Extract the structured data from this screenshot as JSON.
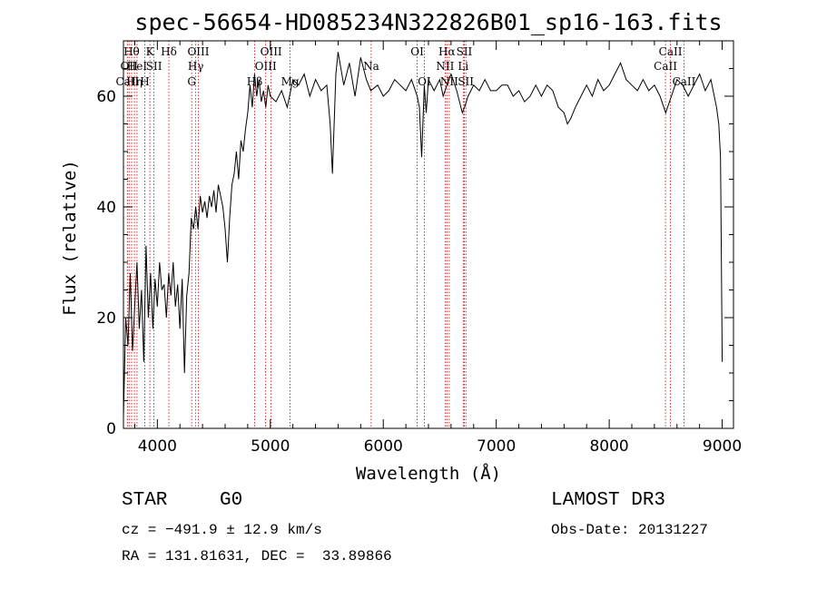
{
  "chart_data": {
    "type": "line",
    "title": "spec-56654-HD085234N322826B01_sp16-163.fits",
    "xlabel": "Wavelength (Å)",
    "ylabel": "Flux (relative)",
    "xlim": [
      3700,
      9100
    ],
    "ylim": [
      0,
      70
    ],
    "xticks": [
      4000,
      5000,
      6000,
      7000,
      8000,
      9000
    ],
    "yticks": [
      0,
      20,
      40,
      60
    ],
    "grid": false,
    "series": [
      {
        "x": [
          3700,
          3720,
          3740,
          3760,
          3780,
          3800,
          3820,
          3840,
          3860,
          3880,
          3900,
          3920,
          3940,
          3960,
          3980,
          4000,
          4020,
          4040,
          4060,
          4080,
          4100,
          4120,
          4140,
          4160,
          4180,
          4200,
          4220,
          4240,
          4260,
          4280,
          4300,
          4320,
          4340,
          4360,
          4380,
          4400,
          4420,
          4440,
          4460,
          4480,
          4500,
          4520,
          4540,
          4560,
          4580,
          4600,
          4620,
          4640,
          4660,
          4680,
          4700,
          4720,
          4740,
          4760,
          4780,
          4800,
          4820,
          4840,
          4860,
          4880,
          4900,
          4920,
          4940,
          4960,
          4980,
          5000,
          5050,
          5100,
          5150,
          5200,
          5250,
          5300,
          5350,
          5400,
          5450,
          5500,
          5530,
          5550,
          5580,
          5600,
          5650,
          5700,
          5750,
          5800,
          5850,
          5890,
          5950,
          6000,
          6050,
          6100,
          6150,
          6200,
          6250,
          6300,
          6320,
          6340,
          6363,
          6380,
          6400,
          6450,
          6500,
          6530,
          6563,
          6600,
          6650,
          6700,
          6720,
          6750,
          6800,
          6850,
          6900,
          6950,
          7000,
          7050,
          7100,
          7150,
          7200,
          7250,
          7300,
          7350,
          7400,
          7450,
          7500,
          7550,
          7600,
          7630,
          7660,
          7700,
          7750,
          7800,
          7850,
          7900,
          7950,
          8000,
          8050,
          8100,
          8150,
          8200,
          8250,
          8300,
          8350,
          8400,
          8450,
          8500,
          8550,
          8600,
          8650,
          8700,
          8750,
          8800,
          8850,
          8900,
          8950,
          8970,
          8985,
          9000
        ],
        "y": [
          2,
          20,
          15,
          28,
          14,
          22,
          30,
          18,
          25,
          12,
          33,
          20,
          28,
          18,
          27,
          22,
          30,
          25,
          26,
          20,
          28,
          24,
          30,
          22,
          26,
          18,
          27,
          10,
          24,
          28,
          38,
          36,
          40,
          36,
          42,
          39,
          41,
          38,
          42,
          40,
          43,
          39,
          44,
          42,
          40,
          36,
          30,
          38,
          44,
          46,
          50,
          45,
          52,
          50,
          54,
          57,
          62,
          58,
          64,
          60,
          63,
          59,
          61,
          58,
          62,
          60,
          59,
          61,
          58,
          63,
          62,
          64,
          60,
          63,
          61,
          62,
          55,
          46,
          64,
          68,
          62,
          66,
          60,
          67,
          63,
          61,
          62,
          60,
          61,
          63,
          62,
          61,
          63,
          60,
          58,
          49,
          62,
          57,
          63,
          61,
          63,
          60,
          62,
          64,
          61,
          57,
          58,
          60,
          62,
          61,
          63,
          61,
          61,
          62,
          62,
          60,
          61,
          59,
          60,
          62,
          60,
          62,
          61,
          58,
          57,
          55,
          56,
          58,
          60,
          62,
          60,
          63,
          61,
          62,
          64,
          66,
          63,
          62,
          61,
          63,
          61,
          62,
          60,
          57,
          60,
          63,
          62,
          60,
          62,
          64,
          61,
          63,
          58,
          55,
          49,
          12
        ]
      }
    ],
    "lines": [
      {
        "x": 3735,
        "label": "CaII",
        "row": 2
      },
      {
        "x": 3750,
        "label": "OII",
        "row": 1
      },
      {
        "x": 3772,
        "label": "Hθ",
        "row": 0
      },
      {
        "x": 3797,
        "label": "Hη",
        "row": 2
      },
      {
        "x": 3820,
        "label": "HeI",
        "row": 1
      },
      {
        "x": 3889,
        "label": "H",
        "row": 2
      },
      {
        "x": 3934,
        "label": "K",
        "row": 0
      },
      {
        "x": 3970,
        "label": "SII",
        "row": 1
      },
      {
        "x": 4102,
        "label": "Hδ",
        "row": 0
      },
      {
        "x": 4304,
        "label": "G",
        "row": 2
      },
      {
        "x": 4340,
        "label": "Hγ",
        "row": 1
      },
      {
        "x": 4363,
        "label": "OIII",
        "row": 0
      },
      {
        "x": 4861,
        "label": "Hβ",
        "row": 2
      },
      {
        "x": 4959,
        "label": "OIII",
        "row": 1
      },
      {
        "x": 5007,
        "label": "OIII",
        "row": 0
      },
      {
        "x": 5175,
        "label": "Mg",
        "row": 2
      },
      {
        "x": 5893,
        "label": "Na",
        "row": 1
      },
      {
        "x": 6300,
        "label": "OI",
        "row": 0
      },
      {
        "x": 6363,
        "label": "OI",
        "row": 2
      },
      {
        "x": 6548,
        "label": "NII",
        "row": 1
      },
      {
        "x": 6563,
        "label": "Hα",
        "row": 0
      },
      {
        "x": 6584,
        "label": "NII",
        "row": 2
      },
      {
        "x": 6708,
        "label": "Li",
        "row": 1
      },
      {
        "x": 6717,
        "label": "SII",
        "row": 0
      },
      {
        "x": 6731,
        "label": "SII",
        "row": 2
      },
      {
        "x": 8498,
        "label": "CaII",
        "row": 1
      },
      {
        "x": 8542,
        "label": "CaII",
        "row": 0
      },
      {
        "x": 8662,
        "label": "CaII",
        "row": 2
      }
    ]
  },
  "footer": {
    "class_label": "STAR",
    "subclass": "G0",
    "survey": "LAMOST DR3",
    "cz": "cz = −491.9 ± 12.9 km/s",
    "obs_date": "Obs-Date: 20131227",
    "coords": "RA = 131.81631, DEC =  33.89866"
  },
  "colors": {
    "spectrum": "#000000",
    "line_markers": "#cc0000",
    "axes": "#000000"
  }
}
